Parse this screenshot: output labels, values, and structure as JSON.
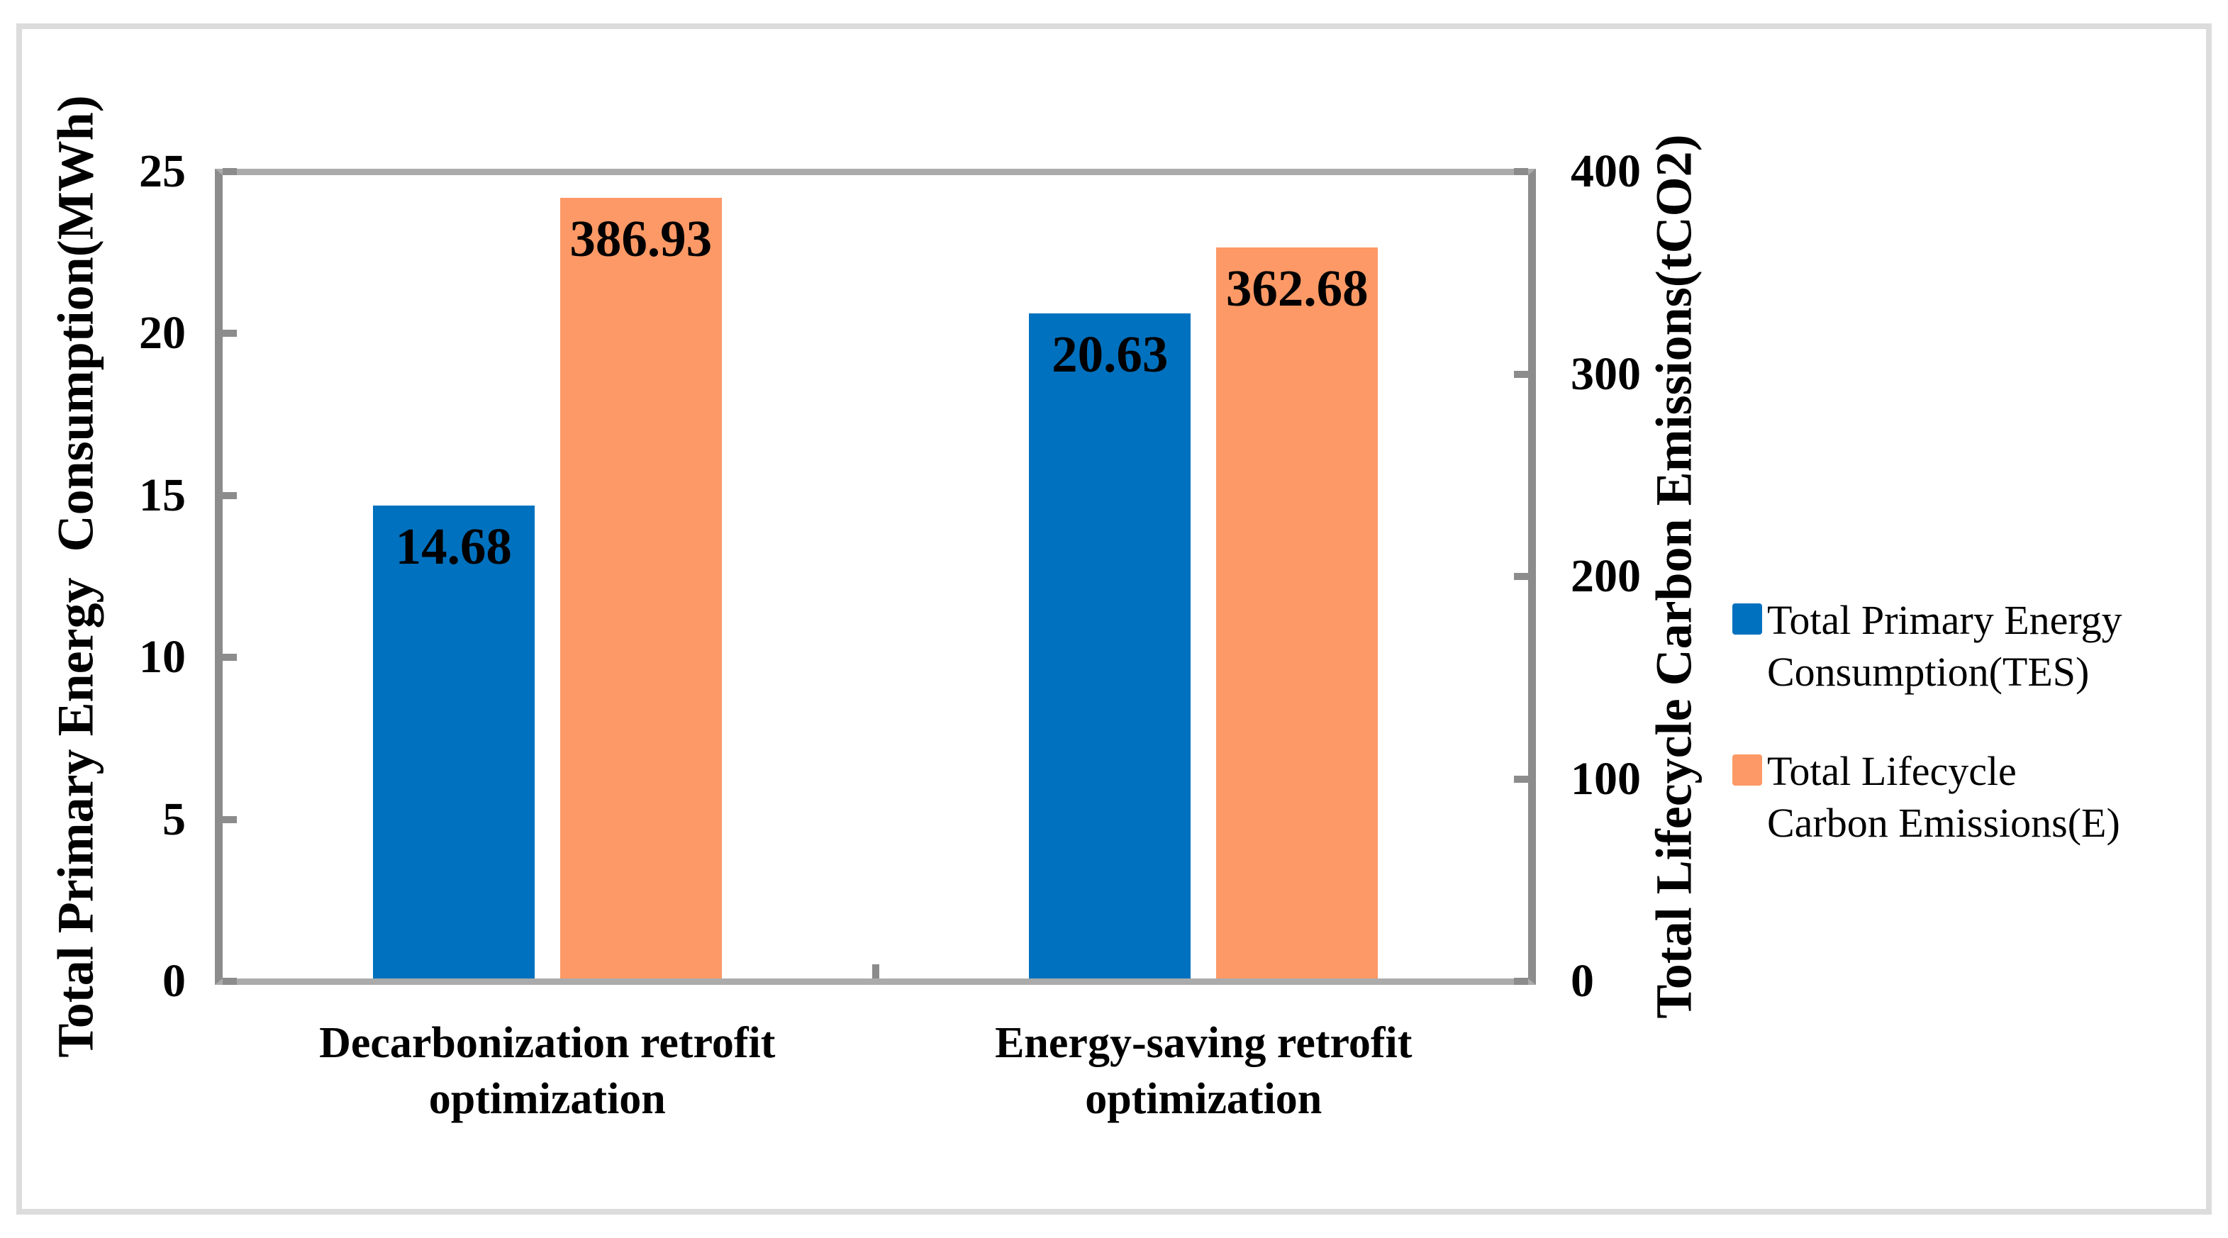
{
  "chart_data": {
    "type": "bar",
    "title": "",
    "grid": false,
    "legend_position": "right",
    "categories": [
      {
        "lines": [
          "Decarbonization retrofit",
          "optimization"
        ]
      },
      {
        "lines": [
          "Energy-saving retrofit",
          "optimization"
        ]
      }
    ],
    "series": [
      {
        "name": "Total Primary Energy Consumption(TES)",
        "axis": "left",
        "color": "#0071BE",
        "values": [
          14.68,
          20.63
        ],
        "labels": [
          "14.68",
          "20.63"
        ]
      },
      {
        "name": "Total Lifecycle Carbon Emissions(E)",
        "axis": "right",
        "color": "#FD9966",
        "values": [
          386.93,
          362.68
        ],
        "labels": [
          "386.93",
          "362.68"
        ]
      }
    ],
    "axes": {
      "left": {
        "label": "Total Primary Energy  Consumption(MWh)",
        "min": 0,
        "max": 25,
        "ticks": [
          "0",
          "5",
          "10",
          "15",
          "20",
          "25"
        ]
      },
      "right": {
        "label": "Total Lifecycle Carbon Emissions(tCO2)",
        "min": 0,
        "max": 400,
        "ticks": [
          "0",
          "100",
          "200",
          "300",
          "400"
        ]
      }
    },
    "legend": {
      "entries": [
        {
          "swatch_color": "#0071BE",
          "lines": [
            "Total Primary Energy",
            "Consumption(TES)"
          ]
        },
        {
          "swatch_color": "#FD9966",
          "lines": [
            "Total Lifecycle",
            "Carbon Emissions(E)"
          ]
        }
      ]
    }
  },
  "style_colors": {
    "vertical_axis_line": "#8C8C8C",
    "horizontal_axis_line": "#ABABAB",
    "tick": "#8C8C8C",
    "outer_border": "#DCDCDC",
    "background": "#FFFFFF",
    "text": "#000000"
  }
}
